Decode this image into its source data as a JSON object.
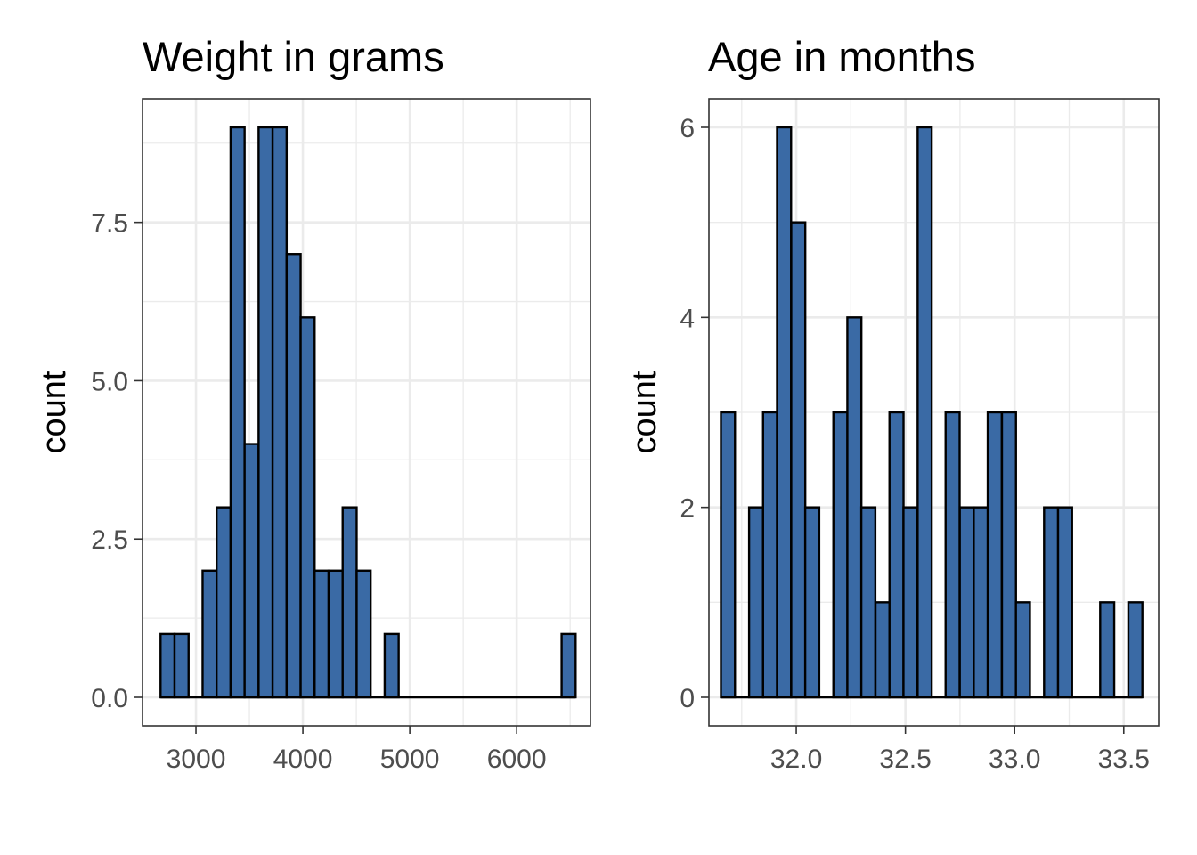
{
  "chart_data": [
    {
      "type": "bar",
      "title": "Weight in grams",
      "xlabel": "",
      "ylabel": "count",
      "x_ticks": [
        "3000",
        "4000",
        "5000",
        "6000"
      ],
      "y_ticks": [
        "0.0",
        "2.5",
        "5.0",
        "7.5"
      ],
      "xlim": [
        2500,
        6690
      ],
      "ylim": [
        -0.45,
        9.45
      ],
      "bin_width": 131,
      "bins": [
        {
          "start": 2669,
          "count": 1
        },
        {
          "start": 2800,
          "count": 1
        },
        {
          "start": 3062,
          "count": 2
        },
        {
          "start": 3193,
          "count": 3
        },
        {
          "start": 3324,
          "count": 9
        },
        {
          "start": 3455,
          "count": 4
        },
        {
          "start": 3586,
          "count": 9
        },
        {
          "start": 3717,
          "count": 9
        },
        {
          "start": 3848,
          "count": 7
        },
        {
          "start": 3979,
          "count": 6
        },
        {
          "start": 4110,
          "count": 2
        },
        {
          "start": 4241,
          "count": 2
        },
        {
          "start": 4372,
          "count": 3
        },
        {
          "start": 4503,
          "count": 2
        },
        {
          "start": 4765,
          "count": 1
        },
        {
          "start": 6420,
          "count": 1
        }
      ],
      "baseline_range": [
        2669,
        6551
      ],
      "bar_color": "#3a6aa5",
      "grid": true
    },
    {
      "type": "bar",
      "title": "Age in months",
      "xlabel": "",
      "ylabel": "count",
      "x_ticks": [
        "32.0",
        "32.5",
        "33.0",
        "33.5"
      ],
      "y_ticks": [
        "0",
        "2",
        "4",
        "6"
      ],
      "xlim": [
        31.6,
        33.66
      ],
      "ylim": [
        -0.3,
        6.3
      ],
      "bin_width": 0.0643,
      "bins": [
        {
          "start": 31.655,
          "count": 3
        },
        {
          "start": 31.784,
          "count": 2
        },
        {
          "start": 31.848,
          "count": 3
        },
        {
          "start": 31.912,
          "count": 6
        },
        {
          "start": 31.977,
          "count": 5
        },
        {
          "start": 32.041,
          "count": 2
        },
        {
          "start": 32.17,
          "count": 3
        },
        {
          "start": 32.234,
          "count": 4
        },
        {
          "start": 32.298,
          "count": 2
        },
        {
          "start": 32.363,
          "count": 1
        },
        {
          "start": 32.427,
          "count": 3
        },
        {
          "start": 32.491,
          "count": 2
        },
        {
          "start": 32.556,
          "count": 6
        },
        {
          "start": 32.684,
          "count": 3
        },
        {
          "start": 32.749,
          "count": 2
        },
        {
          "start": 32.813,
          "count": 2
        },
        {
          "start": 32.877,
          "count": 3
        },
        {
          "start": 32.942,
          "count": 3
        },
        {
          "start": 33.006,
          "count": 1
        },
        {
          "start": 33.135,
          "count": 2
        },
        {
          "start": 33.199,
          "count": 2
        },
        {
          "start": 33.392,
          "count": 1
        },
        {
          "start": 33.521,
          "count": 1
        }
      ],
      "baseline_range": [
        31.655,
        33.585
      ],
      "bar_color": "#3a6aa5",
      "grid": true
    }
  ]
}
